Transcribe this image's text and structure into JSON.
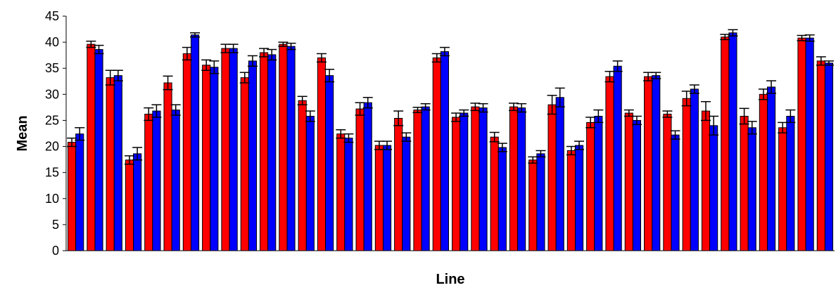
{
  "chart_data": {
    "type": "bar",
    "title": "",
    "xlabel": "Line",
    "ylabel": "Mean",
    "ylim": [
      0,
      45
    ],
    "yticks": [
      0,
      5,
      10,
      15,
      20,
      25,
      30,
      35,
      40,
      45
    ],
    "grid": false,
    "legend": "none",
    "series": [
      {
        "color": "#ff0000",
        "values": [
          20.8,
          39.6,
          33.2,
          17.4,
          26.2,
          32.2,
          37.8,
          35.6,
          38.8,
          33.2,
          38.0,
          39.6,
          28.8,
          37.0,
          22.4,
          27.2,
          20.2,
          25.4,
          27.0,
          37.0,
          25.6,
          27.6,
          21.8,
          27.6,
          17.4,
          28.0,
          19.2,
          24.6,
          33.4,
          26.4,
          33.4,
          26.2,
          29.2,
          26.8,
          41.0,
          25.8,
          30.0,
          23.6,
          40.8,
          36.4
        ],
        "errors": [
          0.8,
          0.6,
          1.4,
          0.8,
          1.2,
          1.3,
          1.2,
          1.0,
          0.8,
          1.0,
          0.8,
          0.4,
          0.8,
          0.8,
          0.8,
          1.2,
          0.8,
          1.4,
          0.5,
          0.8,
          0.8,
          0.7,
          0.9,
          0.7,
          0.6,
          1.8,
          0.8,
          1.0,
          1.0,
          0.6,
          0.8,
          0.6,
          1.4,
          1.8,
          0.5,
          1.5,
          1.0,
          1.0,
          0.5,
          0.8
        ]
      },
      {
        "color": "#0000ff",
        "values": [
          22.4,
          38.6,
          33.6,
          18.6,
          26.8,
          27.0,
          41.4,
          35.2,
          38.8,
          36.4,
          37.6,
          39.2,
          25.8,
          33.6,
          21.6,
          28.4,
          20.2,
          21.8,
          27.6,
          38.2,
          26.4,
          27.4,
          19.8,
          27.4,
          18.6,
          29.4,
          20.2,
          25.8,
          35.4,
          25.0,
          33.6,
          22.2,
          31.0,
          24.0,
          41.8,
          23.6,
          31.4,
          25.8,
          40.8,
          36.0
        ],
        "errors": [
          1.2,
          0.8,
          1.0,
          1.2,
          1.2,
          1.0,
          0.4,
          1.2,
          0.8,
          1.0,
          1.0,
          0.6,
          1.0,
          1.2,
          0.8,
          1.0,
          0.8,
          0.8,
          0.6,
          0.8,
          0.6,
          0.8,
          0.8,
          0.8,
          0.6,
          1.8,
          0.8,
          1.2,
          1.0,
          0.8,
          0.6,
          0.8,
          0.8,
          1.8,
          0.6,
          1.2,
          1.2,
          1.2,
          0.6,
          0.4
        ]
      }
    ]
  }
}
